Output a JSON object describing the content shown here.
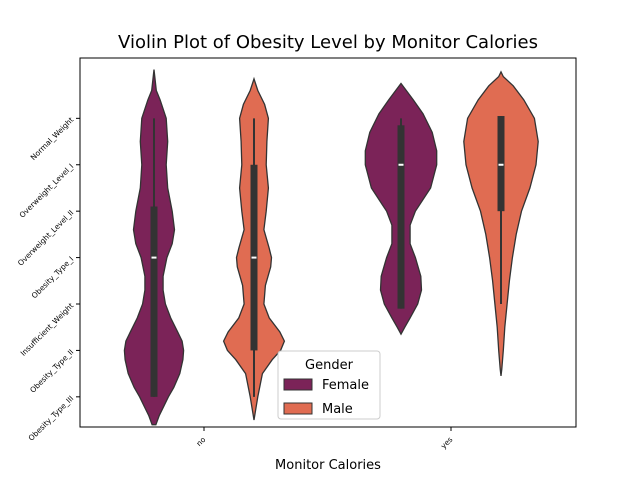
{
  "chart_data": {
    "type": "violin",
    "title": "Violin Plot of Obesity Level by Monitor Calories",
    "xlabel": "Monitor Calories",
    "ylabel": "",
    "categories": [
      "no",
      "yes"
    ],
    "y_categories": [
      "Normal_Weight",
      "Overweight_Level_I",
      "Overweight_Level_II",
      "Obesity_Type_I",
      "Insufficient_Weight",
      "Obesity_Type_II",
      "Obesity_Type_III"
    ],
    "ylim": [
      -0.65,
      7.3
    ],
    "legend": {
      "title": "Gender",
      "placement": "lower-center"
    },
    "series": [
      {
        "name": "Female",
        "color": "#7b2358",
        "violins": [
          {
            "category": "no",
            "density": [
              [
                -0.6,
                0.05
              ],
              [
                -0.4,
                0.14
              ],
              [
                -0.2,
                0.26
              ],
              [
                0.0,
                0.38
              ],
              [
                0.2,
                0.52
              ],
              [
                0.5,
                0.68
              ],
              [
                0.8,
                0.76
              ],
              [
                1.0,
                0.78
              ],
              [
                1.2,
                0.74
              ],
              [
                1.4,
                0.62
              ],
              [
                1.7,
                0.44
              ],
              [
                2.0,
                0.3
              ],
              [
                2.3,
                0.24
              ],
              [
                2.6,
                0.24
              ],
              [
                3.0,
                0.34
              ],
              [
                3.3,
                0.48
              ],
              [
                3.6,
                0.54
              ],
              [
                4.0,
                0.48
              ],
              [
                4.5,
                0.36
              ],
              [
                5.0,
                0.32
              ],
              [
                5.5,
                0.36
              ],
              [
                6.0,
                0.32
              ],
              [
                6.4,
                0.16
              ],
              [
                6.6,
                0.06
              ],
              [
                7.05,
                0.0
              ]
            ],
            "q1": 0.0,
            "median": 3.0,
            "q3": 4.1,
            "whisker_low": 0.0,
            "whisker_high": 6.0
          },
          {
            "category": "yes",
            "density": [
              [
                1.35,
                0.0
              ],
              [
                1.5,
                0.1
              ],
              [
                1.7,
                0.24
              ],
              [
                2.0,
                0.44
              ],
              [
                2.3,
                0.54
              ],
              [
                2.6,
                0.52
              ],
              [
                3.0,
                0.38
              ],
              [
                3.3,
                0.24
              ],
              [
                3.7,
                0.24
              ],
              [
                4.0,
                0.38
              ],
              [
                4.5,
                0.78
              ],
              [
                5.0,
                0.94
              ],
              [
                5.3,
                0.94
              ],
              [
                5.7,
                0.82
              ],
              [
                6.1,
                0.58
              ],
              [
                6.4,
                0.32
              ],
              [
                6.6,
                0.14
              ],
              [
                6.75,
                0.0
              ]
            ],
            "q1": 1.9,
            "median": 5.0,
            "q3": 5.85,
            "whisker_low": 1.9,
            "whisker_high": 6.0
          }
        ]
      },
      {
        "name": "Male",
        "color": "#e06c52",
        "violins": [
          {
            "category": "no",
            "density": [
              [
                -0.5,
                0.0
              ],
              [
                -0.3,
                0.04
              ],
              [
                0.0,
                0.1
              ],
              [
                0.5,
                0.22
              ],
              [
                0.8,
                0.48
              ],
              [
                1.0,
                0.7
              ],
              [
                1.2,
                0.8
              ],
              [
                1.4,
                0.68
              ],
              [
                1.7,
                0.4
              ],
              [
                2.0,
                0.26
              ],
              [
                2.4,
                0.3
              ],
              [
                2.8,
                0.44
              ],
              [
                3.0,
                0.46
              ],
              [
                3.2,
                0.4
              ],
              [
                3.6,
                0.26
              ],
              [
                4.0,
                0.32
              ],
              [
                4.5,
                0.38
              ],
              [
                5.0,
                0.32
              ],
              [
                5.5,
                0.34
              ],
              [
                6.0,
                0.38
              ],
              [
                6.3,
                0.28
              ],
              [
                6.6,
                0.1
              ],
              [
                6.85,
                0.0
              ]
            ],
            "q1": 1.0,
            "median": 3.0,
            "q3": 5.0,
            "whisker_low": 0.0,
            "whisker_high": 6.0
          },
          {
            "category": "yes",
            "density": [
              [
                0.45,
                0.0
              ],
              [
                0.6,
                0.02
              ],
              [
                1.0,
                0.06
              ],
              [
                1.5,
                0.1
              ],
              [
                2.0,
                0.16
              ],
              [
                2.5,
                0.22
              ],
              [
                3.0,
                0.3
              ],
              [
                3.5,
                0.4
              ],
              [
                4.0,
                0.54
              ],
              [
                4.5,
                0.76
              ],
              [
                5.0,
                0.92
              ],
              [
                5.5,
                0.98
              ],
              [
                6.0,
                0.88
              ],
              [
                6.4,
                0.6
              ],
              [
                6.7,
                0.32
              ],
              [
                6.9,
                0.06
              ],
              [
                7.0,
                0.0
              ]
            ],
            "q1": 4.0,
            "median": 5.0,
            "q3": 6.05,
            "whisker_low": 2.0,
            "whisker_high": 6.05
          }
        ]
      }
    ]
  }
}
